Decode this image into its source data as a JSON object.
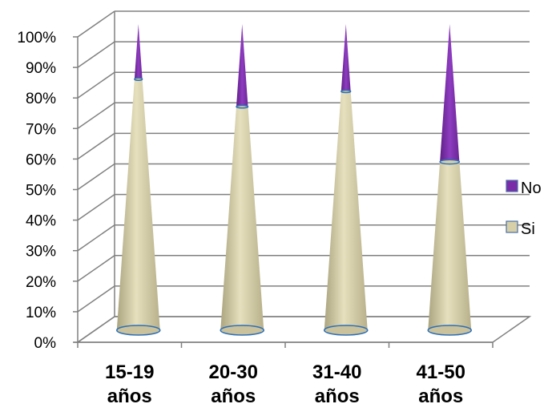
{
  "chart_data": {
    "type": "bar",
    "subtype": "100% stacked cone",
    "categories": [
      "15-19 años",
      "20-30 años",
      "31-40 años",
      "41-50 años"
    ],
    "category_lines": [
      [
        "15-19",
        "años"
      ],
      [
        "20-30",
        "años"
      ],
      [
        "31-40",
        "años"
      ],
      [
        "41-50",
        "años"
      ]
    ],
    "series": [
      {
        "name": "Si",
        "values": [
          82,
          73,
          78,
          55
        ],
        "color": "#D6CFA7"
      },
      {
        "name": "No",
        "values": [
          18,
          27,
          22,
          45
        ],
        "color": "#7A2CA8"
      }
    ],
    "ytick_labels": [
      "0%",
      "10%",
      "20%",
      "30%",
      "40%",
      "50%",
      "60%",
      "70%",
      "80%",
      "90%",
      "100%"
    ],
    "ylim": [
      0,
      100
    ],
    "grid": true,
    "legend": {
      "placement": "right",
      "order": [
        "No",
        "Si"
      ]
    },
    "title": "",
    "xlabel": "",
    "ylabel": ""
  }
}
